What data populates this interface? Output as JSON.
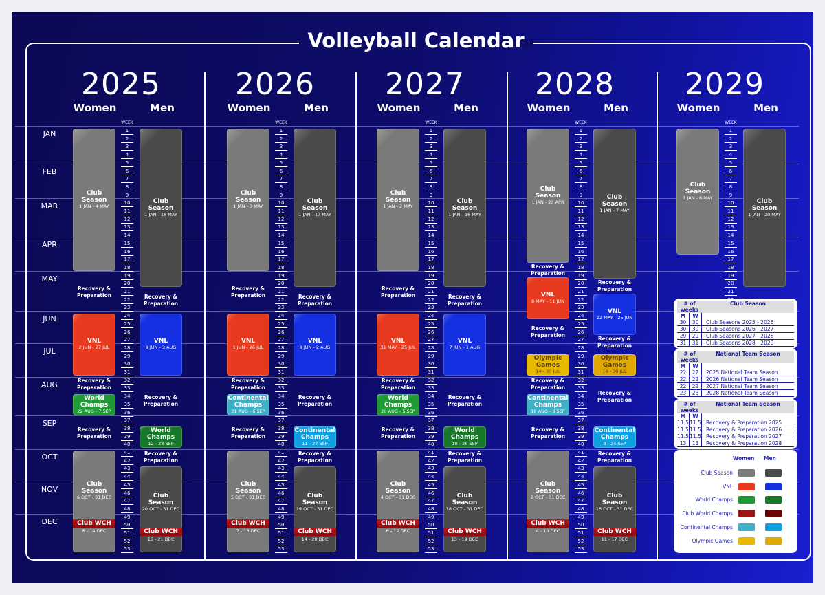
{
  "title": "Volleyball Calendar",
  "week_label": "WEEK",
  "months": [
    "JAN",
    "FEB",
    "MAR",
    "APR",
    "MAY",
    "JUN",
    "JUL",
    "AUG",
    "SEP",
    "OCT",
    "NOV",
    "DEC"
  ],
  "colors": {
    "club": {
      "women": "#7a7a7a",
      "men": "#4a4a4a"
    },
    "vnl": {
      "women": "#e83a1e",
      "men": "#1530e0"
    },
    "worlds": {
      "women": "#1f9a34",
      "men": "#17782a"
    },
    "clubwch": {
      "women": "#a01418",
      "men": "#6a0508"
    },
    "continental": {
      "women": "#3fb0c8",
      "men": "#0ea0e0"
    },
    "olympic": {
      "women": "#e8b800",
      "men": "#e0a800"
    }
  },
  "years": [
    {
      "year": "2025",
      "women_label": "Women",
      "men_label": "Men",
      "weeks": 53,
      "women": [
        {
          "type": "club",
          "title": "Club Season",
          "dates": "1 JAN - 4 MAY",
          "start": 1,
          "end": 18
        },
        {
          "type": "recovery",
          "title": "Recovery & Preparation",
          "start": 19,
          "end": 23
        },
        {
          "type": "vnl",
          "title": "VNL",
          "dates": "2 JUN - 27 JUL",
          "start": 24,
          "end": 31
        },
        {
          "type": "recovery",
          "title": "Recovery & Preparation",
          "start": 32,
          "end": 33
        },
        {
          "type": "worlds",
          "title": "World Champs",
          "dates": "22 AUG - 7 SEP",
          "start": 34,
          "end": 36
        },
        {
          "type": "recovery",
          "title": "Recovery & Preparation",
          "start": 37,
          "end": 40
        },
        {
          "type": "club",
          "title": "Club Season",
          "dates": "6 OCT - 31 DEC",
          "start": 41,
          "end": 53,
          "wch": {
            "label": "Club WCH",
            "dates": "8 - 14 DEC",
            "week": 50
          }
        }
      ],
      "men": [
        {
          "type": "club",
          "title": "Club Season",
          "dates": "1 JAN - 18 MAY",
          "start": 1,
          "end": 20
        },
        {
          "type": "recovery",
          "title": "Recovery & Preparation",
          "start": 21,
          "end": 23
        },
        {
          "type": "vnl",
          "title": "VNL",
          "dates": "9 JUN - 3 AUG",
          "start": 24,
          "end": 31
        },
        {
          "type": "recovery",
          "title": "Recovery & Preparation",
          "start": 32,
          "end": 37
        },
        {
          "type": "worlds",
          "title": "World Champs",
          "dates": "12 - 28 SEP",
          "start": 38,
          "end": 40
        },
        {
          "type": "recovery",
          "title": "Recovery & Preparation",
          "start": 41,
          "end": 42
        },
        {
          "type": "club",
          "title": "Club Season",
          "dates": "20 OCT - 31 DEC",
          "start": 43,
          "end": 53,
          "wch": {
            "label": "Club WCH",
            "dates": "15 - 21 DEC",
            "week": 51
          }
        }
      ]
    },
    {
      "year": "2026",
      "women_label": "Women",
      "men_label": "Men",
      "weeks": 53,
      "women": [
        {
          "type": "club",
          "title": "Club Season",
          "dates": "1 JAN - 3 MAY",
          "start": 1,
          "end": 18
        },
        {
          "type": "recovery",
          "title": "Recovery & Preparation",
          "start": 19,
          "end": 23
        },
        {
          "type": "vnl",
          "title": "VNL",
          "dates": "1 JUN - 26 JUL",
          "start": 24,
          "end": 31
        },
        {
          "type": "recovery",
          "title": "Recovery & Preparation",
          "start": 32,
          "end": 33
        },
        {
          "type": "continental",
          "title": "Continental Champs",
          "dates": "21 AUG - 6 SEP",
          "start": 34,
          "end": 36
        },
        {
          "type": "recovery",
          "title": "Recovery & Preparation",
          "start": 37,
          "end": 40
        },
        {
          "type": "club",
          "title": "Club Season",
          "dates": "5 OCT - 31 DEC",
          "start": 41,
          "end": 53,
          "wch": {
            "label": "Club WCH",
            "dates": "7 - 13 DEC",
            "week": 50
          }
        }
      ],
      "men": [
        {
          "type": "club",
          "title": "Club Season",
          "dates": "1 JAN - 17 MAY",
          "start": 1,
          "end": 20
        },
        {
          "type": "recovery",
          "title": "Recovery & Preparation",
          "start": 21,
          "end": 23
        },
        {
          "type": "vnl",
          "title": "VNL",
          "dates": "8 JUN - 2 AUG",
          "start": 24,
          "end": 31
        },
        {
          "type": "recovery",
          "title": "Recovery & Preparation",
          "start": 32,
          "end": 37
        },
        {
          "type": "continental",
          "title": "Continental Champs",
          "dates": "11 - 27 SEP",
          "start": 38,
          "end": 40
        },
        {
          "type": "recovery",
          "title": "Recovery & Preparation",
          "start": 41,
          "end": 42
        },
        {
          "type": "club",
          "title": "Club Season",
          "dates": "19 OCT - 31 DEC",
          "start": 43,
          "end": 53,
          "wch": {
            "label": "Club WCH",
            "dates": "14 - 20 DEC",
            "week": 51
          }
        }
      ]
    },
    {
      "year": "2027",
      "women_label": "Women",
      "men_label": "Men",
      "weeks": 53,
      "women": [
        {
          "type": "club",
          "title": "Club Season",
          "dates": "1 JAN - 2 MAY",
          "start": 1,
          "end": 18
        },
        {
          "type": "recovery",
          "title": "Recovery & Preparation",
          "start": 19,
          "end": 23
        },
        {
          "type": "vnl",
          "title": "VNL",
          "dates": "31 MAY - 25 JUL",
          "start": 24,
          "end": 31
        },
        {
          "type": "recovery",
          "title": "Recovery & Preparation",
          "start": 32,
          "end": 33
        },
        {
          "type": "worlds",
          "title": "World Champs",
          "dates": "20 AUG - 5 SEP",
          "start": 34,
          "end": 36
        },
        {
          "type": "recovery",
          "title": "Recovery & Preparation",
          "start": 37,
          "end": 40
        },
        {
          "type": "club",
          "title": "Club Season",
          "dates": "4 OCT - 31 DEC",
          "start": 41,
          "end": 53,
          "wch": {
            "label": "Club WCH",
            "dates": "6 - 12 DEC",
            "week": 50
          }
        }
      ],
      "men": [
        {
          "type": "club",
          "title": "Club Season",
          "dates": "1 JAN - 16 MAY",
          "start": 1,
          "end": 20
        },
        {
          "type": "recovery",
          "title": "Recovery & Preparation",
          "start": 21,
          "end": 23
        },
        {
          "type": "vnl",
          "title": "VNL",
          "dates": "7 JUN - 1 AUG",
          "start": 24,
          "end": 31
        },
        {
          "type": "recovery",
          "title": "Recovery & Preparation",
          "start": 32,
          "end": 37
        },
        {
          "type": "worlds",
          "title": "World Champs",
          "dates": "10 - 26 SEP",
          "start": 38,
          "end": 40
        },
        {
          "type": "recovery",
          "title": "Recovery & Preparation",
          "start": 41,
          "end": 42
        },
        {
          "type": "club",
          "title": "Club Season",
          "dates": "18 OCT - 31 DEC",
          "start": 43,
          "end": 53,
          "wch": {
            "label": "Club WCH",
            "dates": "13 - 19 DEC",
            "week": 51
          }
        }
      ]
    },
    {
      "year": "2028",
      "women_label": "Women",
      "men_label": "Men",
      "weeks": 53,
      "women": [
        {
          "type": "club",
          "title": "Club Season",
          "dates": "1 JAN - 23 APR",
          "start": 1,
          "end": 17
        },
        {
          "type": "recovery",
          "title": "Recovery & Preparation",
          "start": 17.5,
          "end": 19
        },
        {
          "type": "vnl",
          "title": "VNL",
          "dates": "8 MAY - 11 JUN",
          "start": 19.5,
          "end": 24
        },
        {
          "type": "recovery",
          "title": "Recovery & Preparation",
          "start": 25,
          "end": 27
        },
        {
          "type": "olympic",
          "title": "Olympic Games",
          "dates": "14 - 30 JUL",
          "start": 29,
          "end": 31
        },
        {
          "type": "recovery",
          "title": "Recovery & Preparation",
          "start": 32,
          "end": 33
        },
        {
          "type": "continental",
          "title": "Continental Champs",
          "dates": "18 AUG - 3 SEP",
          "start": 34,
          "end": 36
        },
        {
          "type": "recovery",
          "title": "Recovery & Preparation",
          "start": 37,
          "end": 40
        },
        {
          "type": "club",
          "title": "Club Season",
          "dates": "2 OCT - 31 DEC",
          "start": 41,
          "end": 53,
          "wch": {
            "label": "Club WCH",
            "dates": "4 - 10 DEC",
            "week": 50
          }
        }
      ],
      "men": [
        {
          "type": "club",
          "title": "Club Season",
          "dates": "1 JAN - 7 MAY",
          "start": 1,
          "end": 19
        },
        {
          "type": "recovery",
          "title": "Recovery & Preparation",
          "start": 19.5,
          "end": 21
        },
        {
          "type": "vnl",
          "title": "VNL",
          "dates": "22 MAY - 25 JUN",
          "start": 21.5,
          "end": 26
        },
        {
          "type": "recovery",
          "title": "Recovery & Preparation",
          "start": 26.5,
          "end": 28
        },
        {
          "type": "olympic",
          "title": "Olympic Games",
          "dates": "14 - 30 JUL",
          "start": 29,
          "end": 31
        },
        {
          "type": "recovery",
          "title": "Recovery & Preparation",
          "start": 32,
          "end": 36
        },
        {
          "type": "continental",
          "title": "Continental Champs",
          "dates": "8 - 24 SEP",
          "start": 38,
          "end": 40
        },
        {
          "type": "recovery",
          "title": "Recovery & Preparation",
          "start": 41,
          "end": 42
        },
        {
          "type": "club",
          "title": "Club Season",
          "dates": "16 OCT - 31 DEC",
          "start": 43,
          "end": 53,
          "wch": {
            "label": "Club WCH",
            "dates": "11 - 17 DEC",
            "week": 51
          }
        }
      ]
    },
    {
      "year": "2029",
      "women_label": "Women",
      "men_label": "Men",
      "weeks": 22,
      "women": [
        {
          "type": "club",
          "title": "Club Season",
          "dates": "1 JAN - 6 MAY",
          "start": 1,
          "end": 16
        }
      ],
      "men": [
        {
          "type": "club",
          "title": "Club Season",
          "dates": "1 JAN - 20 MAY",
          "start": 1,
          "end": 20
        }
      ]
    }
  ],
  "tables": [
    {
      "weeks_header": "# of weeks",
      "title": "Club Season",
      "m": "M",
      "w": "W",
      "rows": [
        [
          "30",
          "30",
          "Club Seasons 2025 - 2026"
        ],
        [
          "30",
          "30",
          "Club Seasons 2026 - 2027"
        ],
        [
          "29",
          "29",
          "Club Seasons 2027 - 2028"
        ],
        [
          "31",
          "31",
          "Club Seasons 2028 - 2029"
        ]
      ]
    },
    {
      "weeks_header": "# of weeks",
      "title": "National Team Season",
      "m": "M",
      "w": "W",
      "rows": [
        [
          "22",
          "22",
          "2025 National Team Season"
        ],
        [
          "22",
          "22",
          "2026 National Team Season"
        ],
        [
          "22",
          "22",
          "2027 National Team Season"
        ],
        [
          "23",
          "23",
          "2028 National Team Season"
        ]
      ]
    },
    {
      "weeks_header": "# of weeks",
      "title": "National Team Season",
      "m": "M",
      "w": "W",
      "rows": [
        [
          "11.5",
          "11.5",
          "Recovery & Preparation 2025"
        ],
        [
          "11.5",
          "11.5",
          "Recovery & Preparation 2026"
        ],
        [
          "11.5",
          "11.5",
          "Recovery & Preparation 2027"
        ],
        [
          "13",
          "13",
          "Recovery & Preparation 2028"
        ]
      ]
    }
  ],
  "legend": {
    "women": "Women",
    "men": "Men",
    "items": [
      {
        "label": "Club Season",
        "key": "club"
      },
      {
        "label": "VNL",
        "key": "vnl"
      },
      {
        "label": "World Champs",
        "key": "worlds"
      },
      {
        "label": "Club World Champs",
        "key": "clubwch"
      },
      {
        "label": "Continental Champs",
        "key": "continental"
      },
      {
        "label": "Olympic Games",
        "key": "olympic"
      }
    ]
  }
}
